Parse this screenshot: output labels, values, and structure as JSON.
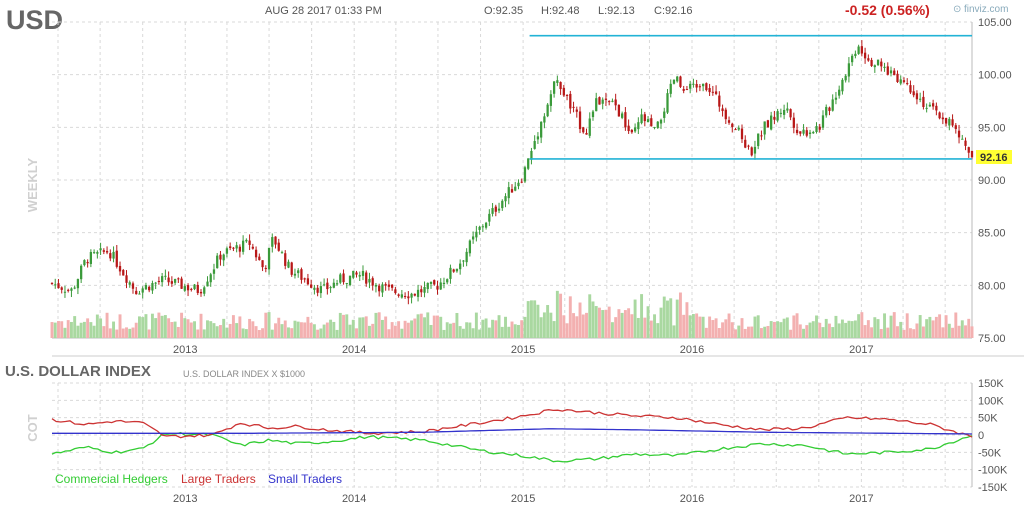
{
  "header": {
    "symbol": "USD",
    "datetime": "AUG 28 2017 01:33 PM",
    "open": "O:92.35",
    "high": "H:92.48",
    "low": "L:92.13",
    "close": "C:92.16",
    "change": "-0.52 (0.56%)",
    "source": "finviz.com",
    "interval": "WEEKLY",
    "last_price_tag": "92.16"
  },
  "cot_header": {
    "title": "U.S. DOLLAR INDEX",
    "subtitle": "U.S. DOLLAR INDEX X $1000",
    "axis_label": "COT"
  },
  "colors": {
    "up": "#3a9a3a",
    "down": "#b81818",
    "vol_up": "#a9d8a0",
    "vol_down": "#f3b0b0",
    "level_line": "#22b3d6",
    "commercial": "#33cc33",
    "large": "#cc3333",
    "small": "#3333cc",
    "change_red": "#cc2222",
    "grid": "#d9d9d9",
    "price_tag_bg": "#ffff33"
  },
  "chart_data": [
    {
      "type": "candlestick",
      "interval": "weekly",
      "y_ticks": [
        "105.00",
        "100.00",
        "95.00",
        "90.00",
        "85.00",
        "80.00",
        "75.00"
      ],
      "y_tick_values": [
        105,
        100,
        95,
        90,
        85,
        80,
        75
      ],
      "ylim": [
        75,
        105
      ],
      "x_ticks": [
        "2013",
        "2014",
        "2015",
        "2016",
        "2017"
      ],
      "xlim": [
        "2012-03-19",
        "2017-08-28"
      ],
      "price_path": [
        [
          "2012-03-19",
          80.2
        ],
        [
          "2012-05-01",
          79.5
        ],
        [
          "2012-06-01",
          82.5
        ],
        [
          "2012-07-20",
          83.3
        ],
        [
          "2012-09-15",
          79.5
        ],
        [
          "2012-11-15",
          80.5
        ],
        [
          "2013-02-01",
          79.5
        ],
        [
          "2013-03-20",
          83.0
        ],
        [
          "2013-05-20",
          84.0
        ],
        [
          "2013-06-20",
          81.5
        ],
        [
          "2013-07-10",
          84.5
        ],
        [
          "2013-08-15",
          81.5
        ],
        [
          "2013-10-25",
          79.5
        ],
        [
          "2013-12-01",
          80.5
        ],
        [
          "2014-01-15",
          81.0
        ],
        [
          "2014-03-15",
          79.5
        ],
        [
          "2014-05-05",
          79.2
        ],
        [
          "2014-06-30",
          80.0
        ],
        [
          "2014-08-15",
          82.0
        ],
        [
          "2014-10-01",
          85.5
        ],
        [
          "2014-11-15",
          88.0
        ],
        [
          "2015-01-01",
          90.5
        ],
        [
          "2015-02-01",
          94.5
        ],
        [
          "2015-03-13",
          99.5
        ],
        [
          "2015-04-20",
          96.5
        ],
        [
          "2015-05-15",
          94.5
        ],
        [
          "2015-06-10",
          97.5
        ],
        [
          "2015-07-20",
          97.0
        ],
        [
          "2015-08-25",
          94.0
        ],
        [
          "2015-09-15",
          96.0
        ],
        [
          "2015-10-15",
          94.5
        ],
        [
          "2015-11-25",
          99.8
        ],
        [
          "2015-12-15",
          98.2
        ],
        [
          "2016-01-25",
          99.5
        ],
        [
          "2016-02-25",
          97.5
        ],
        [
          "2016-04-25",
          93.5
        ],
        [
          "2016-05-05",
          92.5
        ],
        [
          "2016-06-05",
          95.0
        ],
        [
          "2016-07-20",
          97.0
        ],
        [
          "2016-08-20",
          94.5
        ],
        [
          "2016-10-01",
          95.0
        ],
        [
          "2016-11-10",
          98.5
        ],
        [
          "2016-12-25",
          103.0
        ],
        [
          "2017-01-15",
          101.5
        ],
        [
          "2017-02-20",
          100.5
        ],
        [
          "2017-03-15",
          100.0
        ],
        [
          "2017-04-25",
          98.5
        ],
        [
          "2017-05-20",
          97.0
        ],
        [
          "2017-07-10",
          95.5
        ],
        [
          "2017-08-28",
          92.16
        ]
      ],
      "levels": [
        {
          "value": 103.7,
          "from": "2015-01-15",
          "to": "2017-08-28"
        },
        {
          "value": 92.0,
          "from": "2015-01-15",
          "to": "2017-08-28"
        }
      ],
      "last_price": 92.16
    },
    {
      "type": "line",
      "title": "U.S. DOLLAR INDEX",
      "y_ticks": [
        "150K",
        "100K",
        "50K",
        "0",
        "-50K",
        "-100K",
        "-150K"
      ],
      "y_tick_values": [
        150000,
        100000,
        50000,
        0,
        -50000,
        -100000,
        -150000
      ],
      "ylim": [
        -150000,
        150000
      ],
      "x_ticks": [
        "2013",
        "2014",
        "2015",
        "2016",
        "2017"
      ],
      "series": [
        {
          "name": "Commercial Hedgers",
          "values": [
            [
              "2012-03-19",
              -55000
            ],
            [
              "2012-06-01",
              -35000
            ],
            [
              "2012-08-01",
              -50000
            ],
            [
              "2012-10-01",
              -40000
            ],
            [
              "2012-11-20",
              5000
            ],
            [
              "2013-03-01",
              0
            ],
            [
              "2013-05-01",
              -30000
            ],
            [
              "2013-07-01",
              -15000
            ],
            [
              "2013-09-01",
              -25000
            ],
            [
              "2013-11-01",
              -20000
            ],
            [
              "2014-02-01",
              -5000
            ],
            [
              "2014-06-01",
              -15000
            ],
            [
              "2014-10-01",
              -45000
            ],
            [
              "2015-01-01",
              -60000
            ],
            [
              "2015-03-15",
              -75000
            ],
            [
              "2015-06-01",
              -70000
            ],
            [
              "2015-09-01",
              -55000
            ],
            [
              "2015-12-01",
              -60000
            ],
            [
              "2016-03-01",
              -40000
            ],
            [
              "2016-06-01",
              -25000
            ],
            [
              "2016-09-01",
              -30000
            ],
            [
              "2016-12-01",
              -55000
            ],
            [
              "2017-03-01",
              -50000
            ],
            [
              "2017-06-01",
              -40000
            ],
            [
              "2017-08-28",
              0
            ]
          ]
        },
        {
          "name": "Large Traders",
          "values": [
            [
              "2012-03-19",
              45000
            ],
            [
              "2012-06-01",
              30000
            ],
            [
              "2012-08-01",
              40000
            ],
            [
              "2012-10-01",
              35000
            ],
            [
              "2012-11-20",
              -5000
            ],
            [
              "2013-03-01",
              0
            ],
            [
              "2013-05-01",
              35000
            ],
            [
              "2013-07-01",
              20000
            ],
            [
              "2013-09-01",
              25000
            ],
            [
              "2013-11-01",
              15000
            ],
            [
              "2014-02-01",
              5000
            ],
            [
              "2014-06-01",
              10000
            ],
            [
              "2014-10-01",
              35000
            ],
            [
              "2015-01-01",
              55000
            ],
            [
              "2015-03-15",
              75000
            ],
            [
              "2015-06-01",
              65000
            ],
            [
              "2015-09-01",
              55000
            ],
            [
              "2015-12-01",
              50000
            ],
            [
              "2016-03-01",
              30000
            ],
            [
              "2016-06-01",
              15000
            ],
            [
              "2016-09-01",
              20000
            ],
            [
              "2016-12-01",
              50000
            ],
            [
              "2017-03-01",
              45000
            ],
            [
              "2017-06-01",
              30000
            ],
            [
              "2017-08-28",
              -5000
            ]
          ]
        },
        {
          "name": "Small Traders",
          "values": [
            [
              "2012-03-19",
              5000
            ],
            [
              "2013-06-01",
              5000
            ],
            [
              "2014-06-01",
              8000
            ],
            [
              "2015-03-01",
              18000
            ],
            [
              "2015-09-01",
              15000
            ],
            [
              "2016-06-01",
              8000
            ],
            [
              "2017-08-28",
              3000
            ]
          ]
        }
      ]
    }
  ]
}
